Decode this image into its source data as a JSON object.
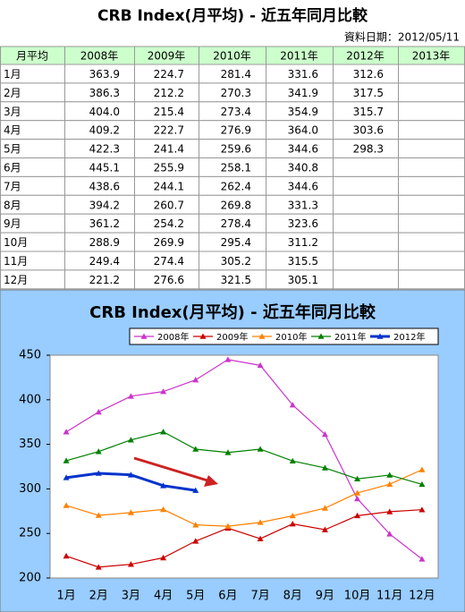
{
  "header": {
    "title": "CRB Index(月平均) - 近五年同月比較",
    "date": "資料日期：2012/05/11"
  },
  "table": {
    "columns": [
      "月平均",
      "2008年",
      "2009年",
      "2010年",
      "2011年",
      "2012年",
      "2013年"
    ],
    "rows": [
      [
        "1月",
        "363.9",
        "224.7",
        "281.4",
        "331.6",
        "312.6",
        null
      ],
      [
        "2月",
        "386.3",
        "212.2",
        "270.3",
        "341.9",
        "317.5",
        null
      ],
      [
        "3月",
        "404.0",
        "215.4",
        "273.4",
        "354.9",
        "315.7",
        null
      ],
      [
        "4月",
        "409.2",
        "222.7",
        "276.9",
        "364.0",
        "303.6",
        null
      ],
      [
        "5月",
        "422.3",
        "241.4",
        "259.6",
        "344.6",
        "298.3",
        null
      ],
      [
        "6月",
        "445.1",
        "255.9",
        "258.1",
        "340.8",
        null,
        null
      ],
      [
        "7月",
        "438.6",
        "244.1",
        "262.4",
        "344.6",
        null,
        null
      ],
      [
        "8月",
        "394.2",
        "260.7",
        "269.8",
        "331.3",
        null,
        null
      ],
      [
        "9月",
        "361.2",
        "254.2",
        "278.4",
        "323.6",
        null,
        null
      ],
      [
        "10月",
        "288.9",
        "269.9",
        "295.4",
        "311.2",
        null,
        null
      ],
      [
        "11月",
        "249.4",
        "274.4",
        "305.2",
        "315.5",
        null,
        null
      ],
      [
        "12月",
        "221.2",
        "276.6",
        "321.5",
        "305.1",
        null,
        null
      ]
    ]
  },
  "chart_data": {
    "type": "line",
    "title": "CRB Index(月平均) - 近五年同月比較",
    "categories": [
      "1月",
      "2月",
      "3月",
      "4月",
      "5月",
      "6月",
      "7月",
      "8月",
      "9月",
      "10月",
      "11月",
      "12月"
    ],
    "series": [
      {
        "name": "2008年",
        "color": "#cc33cc",
        "values": [
          363.9,
          386.3,
          404.0,
          409.2,
          422.3,
          445.1,
          438.6,
          394.2,
          361.2,
          288.9,
          249.4,
          221.2
        ]
      },
      {
        "name": "2009年",
        "color": "#cc0000",
        "values": [
          224.7,
          212.2,
          215.4,
          222.7,
          241.4,
          255.9,
          244.1,
          260.7,
          254.2,
          269.9,
          274.4,
          276.6
        ]
      },
      {
        "name": "2010年",
        "color": "#ff8000",
        "values": [
          281.4,
          270.3,
          273.4,
          276.9,
          259.6,
          258.1,
          262.4,
          269.8,
          278.4,
          295.4,
          305.2,
          321.5
        ]
      },
      {
        "name": "2011年",
        "color": "#008000",
        "values": [
          331.6,
          341.9,
          354.9,
          364.0,
          344.6,
          340.8,
          344.6,
          331.3,
          323.6,
          311.2,
          315.5,
          305.1
        ]
      },
      {
        "name": "2012年",
        "color": "#0033cc",
        "values": [
          312.6,
          317.5,
          315.7,
          303.6,
          298.3,
          null,
          null,
          null,
          null,
          null,
          null,
          null
        ]
      }
    ],
    "ylim": [
      200,
      450
    ],
    "yticks": [
      200,
      250,
      300,
      350,
      400,
      450
    ],
    "legend": "top"
  }
}
